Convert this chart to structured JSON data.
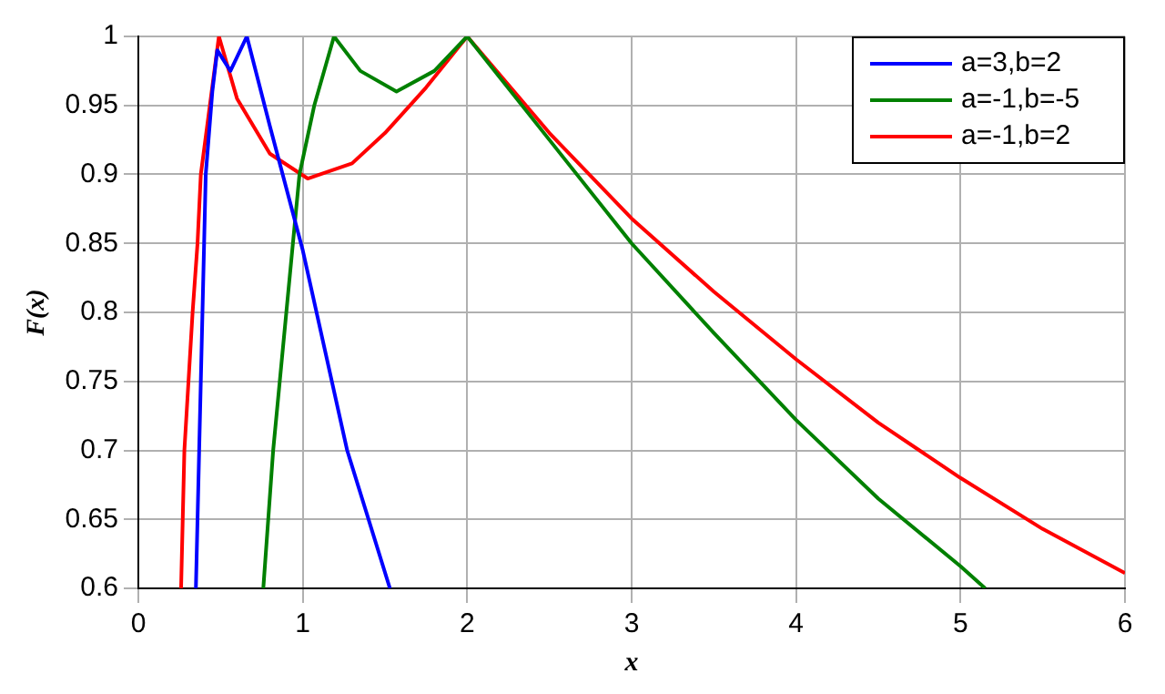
{
  "chart_data": {
    "type": "line",
    "xlabel": "x",
    "ylabel": "F(x)",
    "xlim": [
      0,
      6
    ],
    "xticks": [
      0,
      1,
      2,
      3,
      4,
      5,
      6
    ],
    "ylim": [
      0.6,
      1
    ],
    "yticks": [
      0.6,
      0.65,
      0.7,
      0.75,
      0.8,
      0.85,
      0.9,
      0.95,
      1
    ],
    "grid": true,
    "legend": "top right",
    "marker": "none",
    "line_style": "solid",
    "series": [
      {
        "name": "a=3,b=2",
        "color": "#0000ff",
        "x": [
          0.35,
          0.37,
          0.39,
          0.41,
          0.45,
          0.48,
          0.56,
          0.66,
          0.8,
          1,
          1.27,
          1.53
        ],
        "values": [
          0.6,
          0.7,
          0.8,
          0.9,
          0.96,
          0.99,
          0.975,
          1,
          0.935,
          0.845,
          0.7,
          0.6
        ]
      },
      {
        "name": "a=-1,b=-5",
        "color": "#008000",
        "x": [
          0.76,
          0.82,
          0.9,
          0.98,
          1.07,
          1.19,
          1.35,
          1.57,
          1.8,
          2,
          2.5,
          3,
          3.5,
          4,
          4.5,
          5,
          5.15
        ],
        "values": [
          0.6,
          0.7,
          0.8,
          0.9,
          0.95,
          1,
          0.975,
          0.96,
          0.975,
          1,
          0.925,
          0.85,
          0.785,
          0.722,
          0.665,
          0.616,
          0.6
        ]
      },
      {
        "name": "a=-1,b=2",
        "color": "#ff0000",
        "x": [
          0.26,
          0.28,
          0.33,
          0.36,
          0.38,
          0.49,
          0.6,
          0.8,
          1.03,
          1.3,
          1.5,
          1.75,
          2,
          2.5,
          3,
          3.5,
          4,
          4.5,
          5,
          5.5,
          6
        ],
        "values": [
          0.6,
          0.7,
          0.8,
          0.85,
          0.9,
          1,
          0.955,
          0.915,
          0.897,
          0.908,
          0.93,
          0.963,
          1,
          0.93,
          0.868,
          0.815,
          0.766,
          0.72,
          0.68,
          0.643,
          0.611
        ]
      }
    ]
  }
}
